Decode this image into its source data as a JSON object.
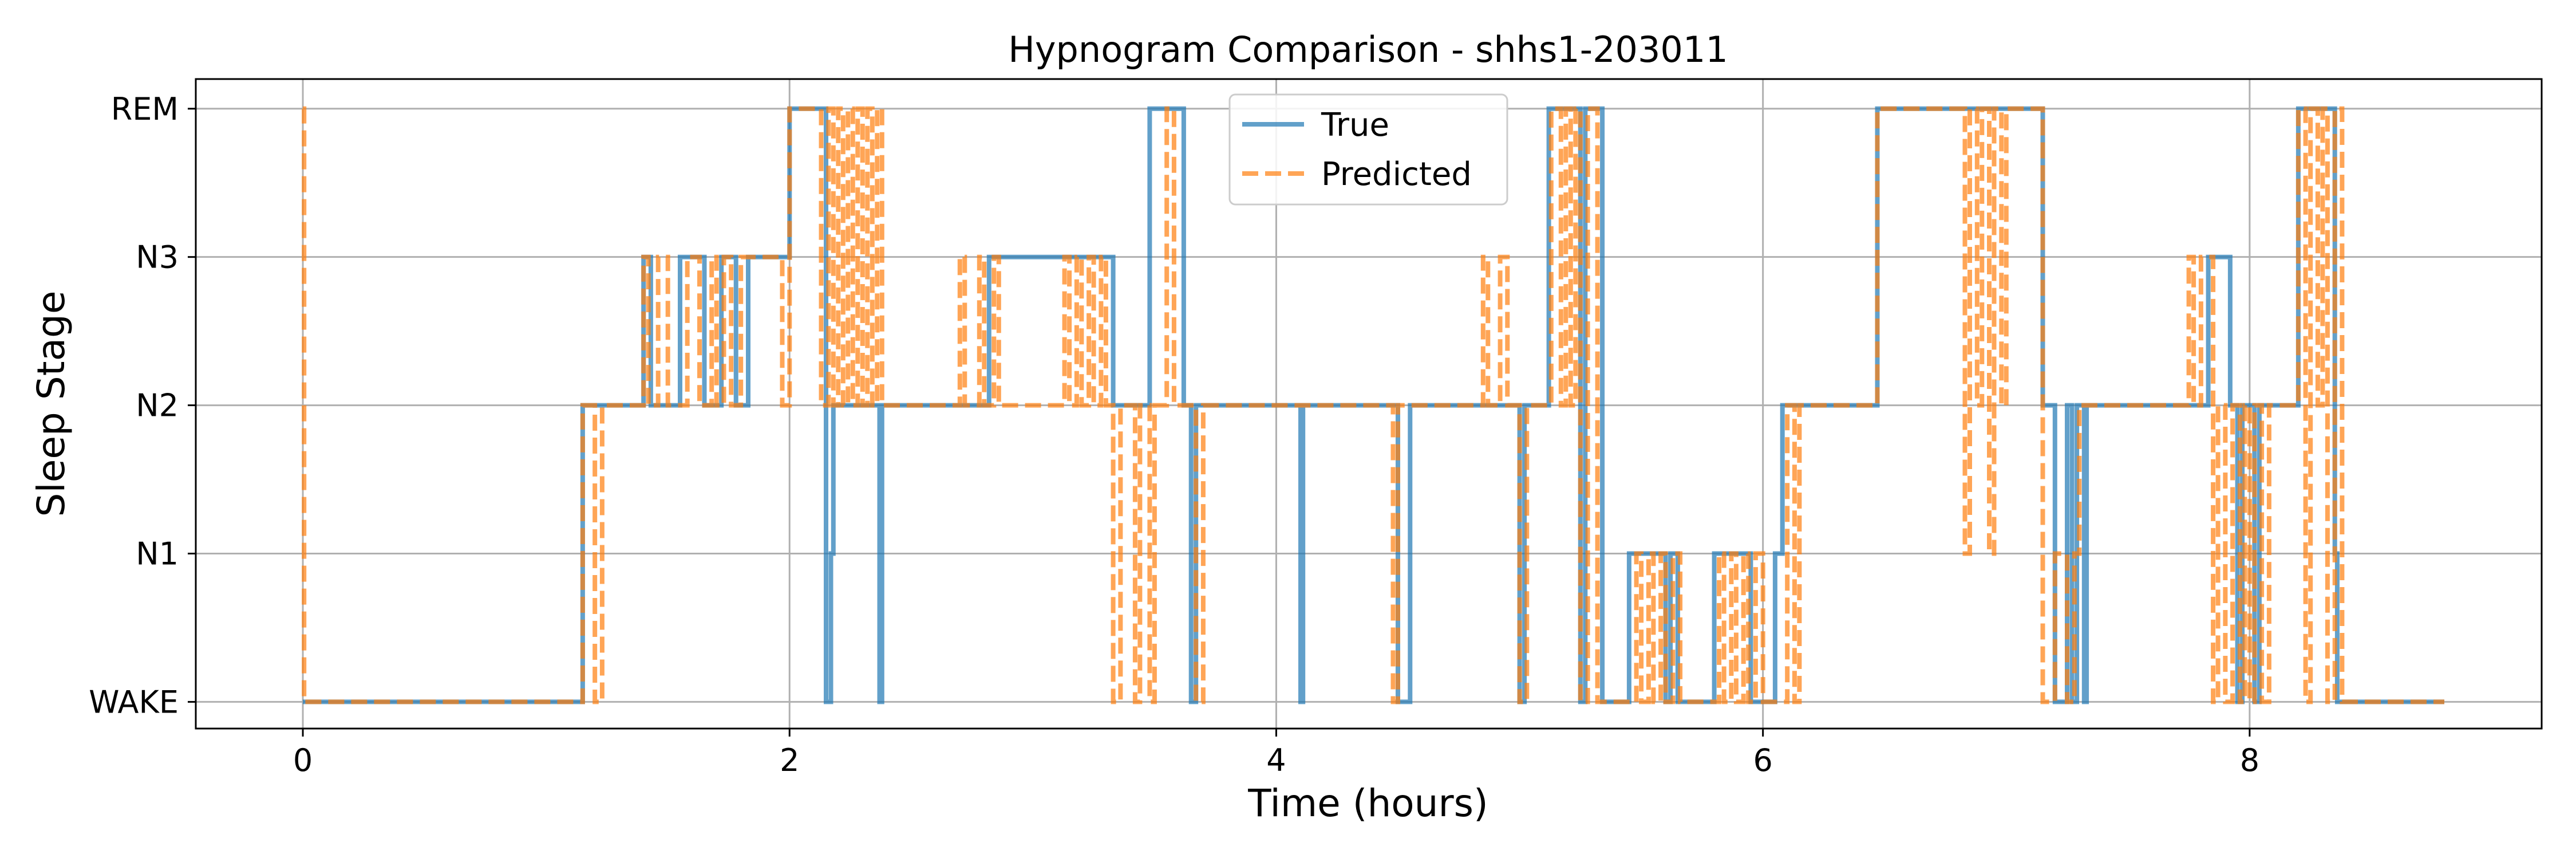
{
  "chart_data": {
    "type": "line",
    "title": "Hypnogram Comparison - shhs1-203011",
    "xlabel": "Time (hours)",
    "ylabel": "Sleep Stage",
    "xlim": [
      -0.44,
      9.2
    ],
    "ylim": [
      -0.18,
      4.2
    ],
    "x_ticks": [
      0,
      2,
      4,
      6,
      8
    ],
    "x_tick_labels": [
      "0",
      "2",
      "4",
      "6",
      "8"
    ],
    "y_ticks": [
      0,
      1,
      2,
      3,
      4
    ],
    "y_tick_labels": [
      "WAKE",
      "N1",
      "N2",
      "N3",
      "REM"
    ],
    "grid": true,
    "legend_position": "top-center",
    "series": [
      {
        "name": "True",
        "color": "#1f77b4",
        "line_style": "solid",
        "steps": [
          [
            0.0,
            0
          ],
          [
            1.15,
            2
          ],
          [
            1.4,
            3
          ],
          [
            1.43,
            2
          ],
          [
            1.55,
            3
          ],
          [
            1.65,
            2
          ],
          [
            1.72,
            3
          ],
          [
            1.78,
            2
          ],
          [
            1.83,
            3
          ],
          [
            2.0,
            4
          ],
          [
            2.15,
            0
          ],
          [
            2.17,
            1
          ],
          [
            2.18,
            2
          ],
          [
            2.37,
            0
          ],
          [
            2.38,
            2
          ],
          [
            2.82,
            3
          ],
          [
            3.33,
            2
          ],
          [
            3.48,
            4
          ],
          [
            3.62,
            2
          ],
          [
            3.65,
            0
          ],
          [
            3.67,
            2
          ],
          [
            4.1,
            0
          ],
          [
            4.11,
            2
          ],
          [
            4.5,
            0
          ],
          [
            4.55,
            2
          ],
          [
            5.0,
            0
          ],
          [
            5.02,
            2
          ],
          [
            5.12,
            4
          ],
          [
            5.25,
            0
          ],
          [
            5.27,
            4
          ],
          [
            5.34,
            0
          ],
          [
            5.45,
            1
          ],
          [
            5.6,
            0
          ],
          [
            5.62,
            1
          ],
          [
            5.65,
            0
          ],
          [
            5.8,
            1
          ],
          [
            5.95,
            0
          ],
          [
            6.05,
            1
          ],
          [
            6.08,
            2
          ],
          [
            6.47,
            4
          ],
          [
            7.15,
            2
          ],
          [
            7.2,
            0
          ],
          [
            7.25,
            2
          ],
          [
            7.27,
            0
          ],
          [
            7.29,
            2
          ],
          [
            7.32,
            0
          ],
          [
            7.33,
            2
          ],
          [
            7.83,
            3
          ],
          [
            7.92,
            2
          ],
          [
            7.95,
            0
          ],
          [
            7.97,
            2
          ],
          [
            8.02,
            0
          ],
          [
            8.04,
            2
          ],
          [
            8.2,
            4
          ],
          [
            8.35,
            1
          ],
          [
            8.36,
            0
          ],
          [
            8.8,
            0
          ]
        ]
      },
      {
        "name": "Predicted",
        "color": "#ff7f0e",
        "line_style": "dashed",
        "steps": [
          [
            0.0,
            4
          ],
          [
            0.005,
            0
          ],
          [
            1.15,
            2
          ],
          [
            1.2,
            0
          ],
          [
            1.23,
            2
          ],
          [
            1.4,
            3
          ],
          [
            1.42,
            2
          ],
          [
            1.46,
            3
          ],
          [
            1.5,
            2
          ],
          [
            1.58,
            3
          ],
          [
            1.63,
            2
          ],
          [
            1.68,
            3
          ],
          [
            1.7,
            2
          ],
          [
            1.73,
            3
          ],
          [
            1.76,
            2
          ],
          [
            1.8,
            3
          ],
          [
            1.97,
            2
          ],
          [
            2.0,
            4
          ],
          [
            2.13,
            2
          ],
          [
            2.16,
            4
          ],
          [
            2.18,
            2
          ],
          [
            2.2,
            4
          ],
          [
            2.22,
            2
          ],
          [
            2.24,
            4
          ],
          [
            2.26,
            2
          ],
          [
            2.28,
            4
          ],
          [
            2.3,
            2
          ],
          [
            2.32,
            4
          ],
          [
            2.34,
            2
          ],
          [
            2.36,
            4
          ],
          [
            2.38,
            2
          ],
          [
            2.7,
            3
          ],
          [
            2.72,
            2
          ],
          [
            2.78,
            3
          ],
          [
            2.8,
            2
          ],
          [
            2.84,
            3
          ],
          [
            2.86,
            2
          ],
          [
            3.13,
            3
          ],
          [
            3.15,
            2
          ],
          [
            3.18,
            3
          ],
          [
            3.2,
            2
          ],
          [
            3.23,
            3
          ],
          [
            3.25,
            2
          ],
          [
            3.28,
            3
          ],
          [
            3.3,
            2
          ],
          [
            3.33,
            0
          ],
          [
            3.36,
            2
          ],
          [
            3.42,
            0
          ],
          [
            3.44,
            2
          ],
          [
            3.48,
            0
          ],
          [
            3.5,
            2
          ],
          [
            3.55,
            4
          ],
          [
            3.58,
            2
          ],
          [
            3.67,
            0
          ],
          [
            3.7,
            2
          ],
          [
            4.48,
            0
          ],
          [
            4.5,
            2
          ],
          [
            4.85,
            3
          ],
          [
            4.87,
            2
          ],
          [
            4.92,
            3
          ],
          [
            4.95,
            2
          ],
          [
            5.0,
            0
          ],
          [
            5.03,
            2
          ],
          [
            5.13,
            4
          ],
          [
            5.17,
            2
          ],
          [
            5.19,
            4
          ],
          [
            5.21,
            2
          ],
          [
            5.23,
            4
          ],
          [
            5.25,
            0
          ],
          [
            5.28,
            4
          ],
          [
            5.32,
            0
          ],
          [
            5.48,
            1
          ],
          [
            5.5,
            0
          ],
          [
            5.53,
            1
          ],
          [
            5.55,
            0
          ],
          [
            5.58,
            1
          ],
          [
            5.6,
            0
          ],
          [
            5.63,
            1
          ],
          [
            5.66,
            0
          ],
          [
            5.82,
            1
          ],
          [
            5.84,
            0
          ],
          [
            5.87,
            1
          ],
          [
            5.89,
            0
          ],
          [
            5.92,
            1
          ],
          [
            5.94,
            0
          ],
          [
            5.97,
            1
          ],
          [
            6.0,
            0
          ],
          [
            6.1,
            2
          ],
          [
            6.13,
            0
          ],
          [
            6.15,
            2
          ],
          [
            6.47,
            4
          ],
          [
            6.83,
            1
          ],
          [
            6.85,
            4
          ],
          [
            6.88,
            2
          ],
          [
            6.9,
            4
          ],
          [
            6.93,
            1
          ],
          [
            6.95,
            4
          ],
          [
            6.98,
            2
          ],
          [
            7.0,
            4
          ],
          [
            7.15,
            0
          ],
          [
            7.2,
            1
          ],
          [
            7.25,
            0
          ],
          [
            7.28,
            1
          ],
          [
            7.3,
            2
          ],
          [
            7.75,
            3
          ],
          [
            7.77,
            2
          ],
          [
            7.8,
            3
          ],
          [
            7.85,
            0
          ],
          [
            7.87,
            2
          ],
          [
            7.9,
            0
          ],
          [
            7.93,
            2
          ],
          [
            7.96,
            0
          ],
          [
            7.98,
            2
          ],
          [
            8.0,
            0
          ],
          [
            8.02,
            2
          ],
          [
            8.05,
            0
          ],
          [
            8.08,
            2
          ],
          [
            8.2,
            4
          ],
          [
            8.23,
            0
          ],
          [
            8.25,
            4
          ],
          [
            8.28,
            2
          ],
          [
            8.3,
            4
          ],
          [
            8.32,
            0
          ],
          [
            8.35,
            4
          ],
          [
            8.38,
            0
          ],
          [
            8.8,
            0
          ]
        ]
      }
    ]
  }
}
